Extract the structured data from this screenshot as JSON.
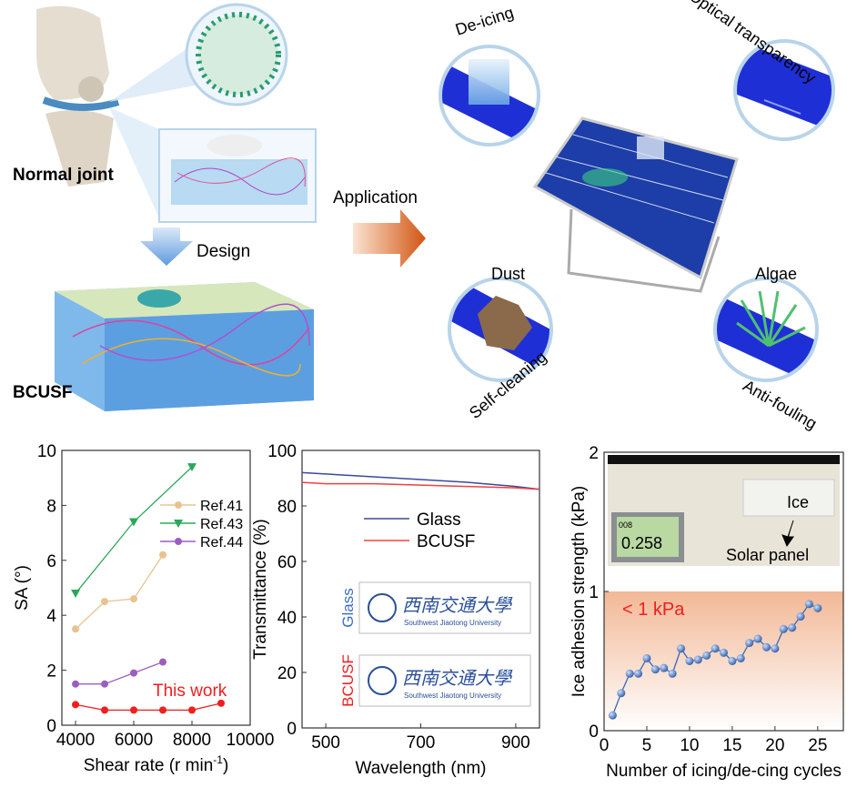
{
  "illustration": {
    "normal_joint": "Normal joint",
    "design": "Design",
    "bcusf": "BCUSF",
    "application": "Application",
    "de_icing": "De-icing",
    "optical": "Optical transparency",
    "dust": "Dust",
    "self_cleaning": "Self-cleaning",
    "algae": "Algae",
    "anti_fouling": "Anti-fouling"
  },
  "colors": {
    "blue_panel": "#1f2fd6",
    "arrow": "#d9601a",
    "design_arrow": "#8ab8e8",
    "circle": "#b8d4ea"
  },
  "chart_data": [
    {
      "type": "line",
      "title": "",
      "xlabel": "Shear rate (r min",
      "xlabel_sup": "-1",
      "xlabel_close": ")",
      "ylabel": "SA (°)",
      "xlim": [
        3530,
        10000
      ],
      "ylim": [
        0,
        10
      ],
      "xticks": [
        4000,
        6000,
        8000,
        10000
      ],
      "yticks": [
        0,
        2,
        4,
        6,
        8,
        10
      ],
      "legend": "top-right",
      "annotation": "This work",
      "series": [
        {
          "name": "Ref.41",
          "color": "#e8c38f",
          "marker": "circle",
          "x": [
            4000,
            5000,
            6000,
            7000
          ],
          "y": [
            3.5,
            4.5,
            4.6,
            6.2
          ]
        },
        {
          "name": "Ref.43",
          "color": "#2aa85a",
          "marker": "triangle-down",
          "x": [
            4000,
            6000,
            8000
          ],
          "y": [
            4.8,
            7.4,
            9.4
          ]
        },
        {
          "name": "Ref.44",
          "color": "#9b5fc0",
          "marker": "circle",
          "x": [
            4000,
            5000,
            6000,
            7000
          ],
          "y": [
            1.5,
            1.5,
            1.9,
            2.3
          ]
        },
        {
          "name": "This work",
          "color": "#f01e1e",
          "marker": "circle",
          "x": [
            4000,
            5000,
            6000,
            7000,
            8000,
            9000
          ],
          "y": [
            0.75,
            0.55,
            0.55,
            0.55,
            0.55,
            0.8
          ],
          "in_legend": false
        }
      ]
    },
    {
      "type": "line",
      "xlabel": "Wavelength (nm)",
      "ylabel": "Transmittance (%)",
      "xlim": [
        450,
        950
      ],
      "ylim": [
        0,
        100
      ],
      "xticks": [
        500,
        700,
        900
      ],
      "yticks": [
        0,
        20,
        40,
        60,
        80,
        100
      ],
      "legend": "top-right",
      "series": [
        {
          "name": "Glass",
          "color": "#3a4a9a",
          "x": [
            450,
            500,
            600,
            700,
            800,
            900,
            950
          ],
          "y": [
            92,
            91.5,
            90.5,
            89.5,
            88.5,
            87,
            86
          ]
        },
        {
          "name": "BCUSF",
          "color": "#f04040",
          "x": [
            450,
            500,
            600,
            700,
            800,
            900,
            950
          ],
          "y": [
            88.5,
            88,
            88,
            87.5,
            87,
            86.5,
            86
          ]
        }
      ],
      "inset_labels": {
        "glass": "Glass",
        "bcusf": "BCUSF",
        "univ_cn": "西南交通大學",
        "univ_en": "Southwest Jiaotong University"
      }
    },
    {
      "type": "line",
      "xlabel": "Number of icing/de-cing cycles",
      "ylabel": "Ice adhesion strength (kPa)",
      "xlim": [
        0,
        28
      ],
      "ylim": [
        0,
        2
      ],
      "xticks": [
        0,
        5,
        10,
        15,
        20,
        25
      ],
      "yticks": [
        0,
        1,
        2
      ],
      "annotation": "< 1 kPa",
      "series": [
        {
          "name": "Ice adhesion",
          "color": "#3a68b8",
          "marker": "sphere",
          "x": [
            1,
            2,
            3,
            4,
            5,
            6,
            7,
            8,
            9,
            10,
            11,
            12,
            13,
            14,
            15,
            16,
            17,
            18,
            19,
            20,
            21,
            22,
            23,
            24,
            25
          ],
          "y": [
            0.11,
            0.27,
            0.41,
            0.41,
            0.52,
            0.44,
            0.45,
            0.41,
            0.59,
            0.5,
            0.51,
            0.54,
            0.59,
            0.56,
            0.5,
            0.52,
            0.63,
            0.66,
            0.6,
            0.59,
            0.73,
            0.74,
            0.82,
            0.91,
            0.88
          ]
        }
      ],
      "inset_labels": {
        "ice": "Ice",
        "solar_panel": "Solar panel",
        "reading": "0.258",
        "counter": "008"
      }
    }
  ]
}
